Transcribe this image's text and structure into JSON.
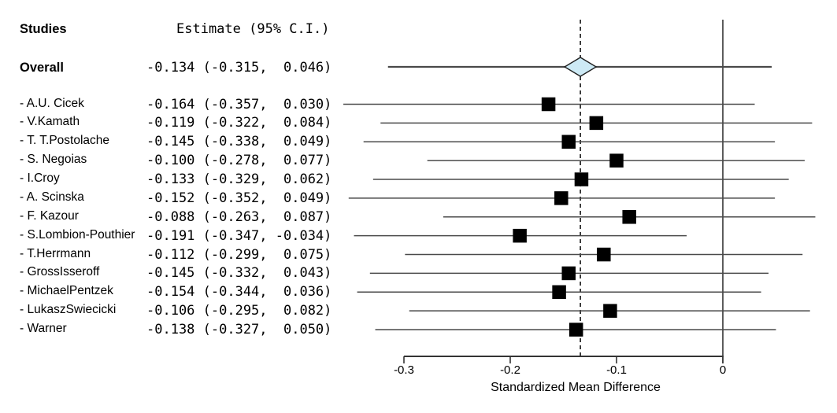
{
  "header": {
    "studies_label": "Studies",
    "estimate_label": "Estimate (95% C.I.)"
  },
  "chart_data": {
    "type": "forest",
    "xlabel": "Standardized Mean Difference",
    "x_ticks": [
      -0.3,
      -0.2,
      -0.1,
      0
    ],
    "x_tick_labels": [
      "-0.3",
      "-0.2",
      "-0.1",
      "0"
    ],
    "xlim": [
      -0.37,
      0.11
    ],
    "reference_line": 0,
    "pooled_dashed_line": -0.134,
    "grid": false,
    "overall": {
      "label": "Overall",
      "estimate_text": "-0.134 (-0.315,  0.046)",
      "est": -0.134,
      "lo": -0.315,
      "hi": 0.046
    },
    "studies": [
      {
        "label": "- A.U. Cicek",
        "estimate_text": "-0.164 (-0.357,  0.030)",
        "est": -0.164,
        "lo": -0.357,
        "hi": 0.03
      },
      {
        "label": "- V.Kamath",
        "estimate_text": "-0.119 (-0.322,  0.084)",
        "est": -0.119,
        "lo": -0.322,
        "hi": 0.084
      },
      {
        "label": "- T. T.Postolache",
        "estimate_text": "-0.145 (-0.338,  0.049)",
        "est": -0.145,
        "lo": -0.338,
        "hi": 0.049
      },
      {
        "label": "- S. Negoias",
        "estimate_text": "-0.100 (-0.278,  0.077)",
        "est": -0.1,
        "lo": -0.278,
        "hi": 0.077
      },
      {
        "label": "- I.Croy",
        "estimate_text": "-0.133 (-0.329,  0.062)",
        "est": -0.133,
        "lo": -0.329,
        "hi": 0.062
      },
      {
        "label": "- A. Scinska",
        "estimate_text": "-0.152 (-0.352,  0.049)",
        "est": -0.152,
        "lo": -0.352,
        "hi": 0.049
      },
      {
        "label": "- F. Kazour",
        "estimate_text": "-0.088 (-0.263,  0.087)",
        "est": -0.088,
        "lo": -0.263,
        "hi": 0.087
      },
      {
        "label": "- S.Lombion-Pouthier",
        "estimate_text": "-0.191 (-0.347, -0.034)",
        "est": -0.191,
        "lo": -0.347,
        "hi": -0.034
      },
      {
        "label": "- T.Herrmann",
        "estimate_text": "-0.112 (-0.299,  0.075)",
        "est": -0.112,
        "lo": -0.299,
        "hi": 0.075
      },
      {
        "label": "- GrossIsseroff",
        "estimate_text": "-0.145 (-0.332,  0.043)",
        "est": -0.145,
        "lo": -0.332,
        "hi": 0.043
      },
      {
        "label": "- MichaelPentzek",
        "estimate_text": "-0.154 (-0.344,  0.036)",
        "est": -0.154,
        "lo": -0.344,
        "hi": 0.036
      },
      {
        "label": "- LukaszSwiecicki",
        "estimate_text": "-0.106 (-0.295,  0.082)",
        "est": -0.106,
        "lo": -0.295,
        "hi": 0.082
      },
      {
        "label": "- Warner",
        "estimate_text": "-0.138 (-0.327,  0.050)",
        "est": -0.138,
        "lo": -0.327,
        "hi": 0.05
      }
    ]
  },
  "colors": {
    "diamond_fill": "#cdeaf5",
    "diamond_stroke": "#222222",
    "ci_line": "#4a4a4a",
    "marker": "#000000",
    "axis": "#333333",
    "dashed_line": "#1a1a1a",
    "text": "#000000"
  }
}
